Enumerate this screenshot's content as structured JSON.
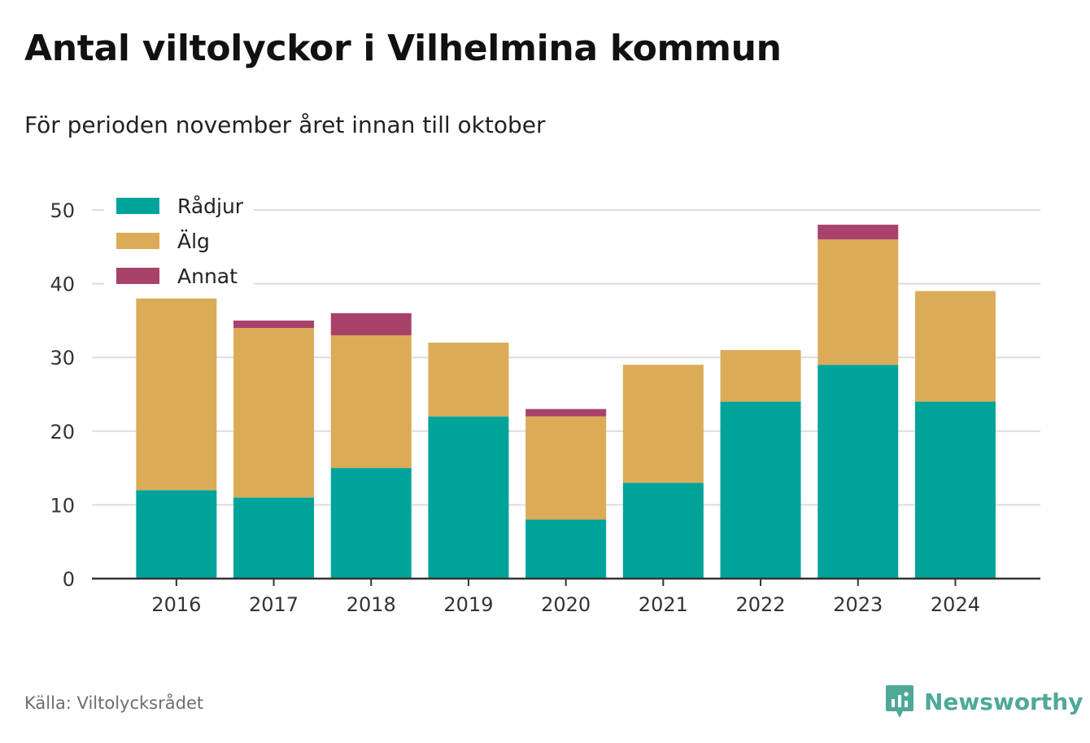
{
  "title": "Antal viltolyckor i Vilhelmina kommun",
  "subtitle": "För perioden november året innan till oktober",
  "source": "Källa: Viltolycksrådet",
  "brand": {
    "name": "Newsworthy",
    "icon": "newsworthy-logo-icon",
    "color": "#4fa898"
  },
  "colors": {
    "Rådjur": "#00a39a",
    "Älg": "#dbab58",
    "Annat": "#a8426a",
    "grid": "#dddddd",
    "axis": "#333333"
  },
  "chart_data": {
    "type": "bar",
    "stacked": true,
    "categories": [
      "2016",
      "2017",
      "2018",
      "2019",
      "2020",
      "2021",
      "2022",
      "2023",
      "2024"
    ],
    "series": [
      {
        "name": "Rådjur",
        "values": [
          12,
          11,
          15,
          22,
          8,
          13,
          24,
          29,
          24
        ]
      },
      {
        "name": "Älg",
        "values": [
          26,
          23,
          18,
          10,
          14,
          16,
          7,
          17,
          15
        ]
      },
      {
        "name": "Annat",
        "values": [
          0,
          1,
          3,
          0,
          1,
          0,
          0,
          2,
          0
        ]
      }
    ],
    "xlabel": "",
    "ylabel": "",
    "ylim": [
      0,
      50
    ],
    "yticks": [
      0,
      10,
      20,
      30,
      40,
      50
    ],
    "grid": true,
    "legend": "top-left"
  }
}
